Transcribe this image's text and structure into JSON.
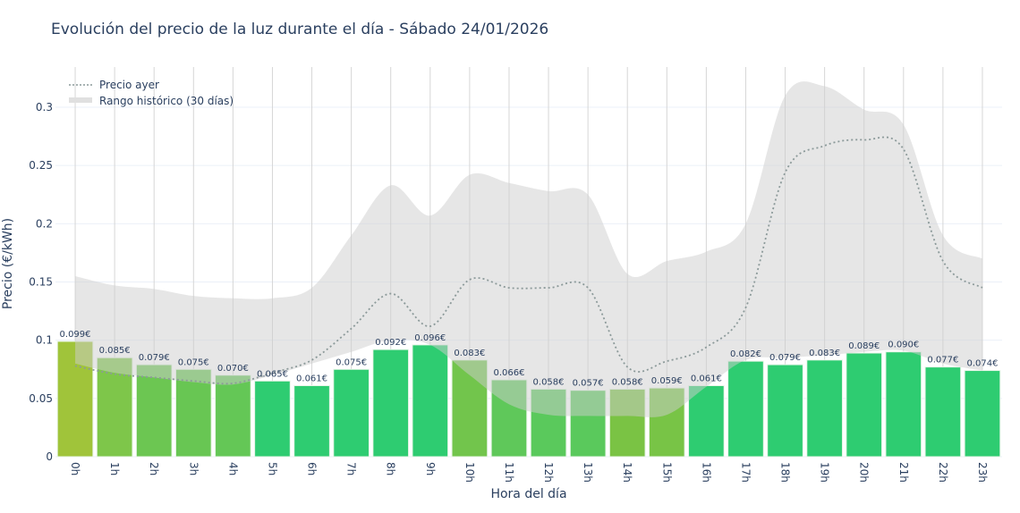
{
  "chart_data": {
    "type": "bar",
    "title": "Evolución del precio de la luz durante el día - Sábado 24/01/2026",
    "xlabel": "Hora del día",
    "ylabel": "Precio (€/kWh)",
    "ylim": [
      0,
      0.33
    ],
    "yticks": [
      0,
      0.05,
      0.1,
      0.15,
      0.2,
      0.25,
      0.3
    ],
    "ytick_labels": [
      "0",
      "0.05",
      "0.1",
      "0.15",
      "0.2",
      "0.25",
      "0.3"
    ],
    "grid": true,
    "legend_position": "top-left",
    "categories": [
      "0h",
      "1h",
      "2h",
      "3h",
      "4h",
      "5h",
      "6h",
      "7h",
      "8h",
      "9h",
      "10h",
      "11h",
      "12h",
      "13h",
      "14h",
      "15h",
      "16h",
      "17h",
      "18h",
      "19h",
      "20h",
      "21h",
      "22h",
      "23h"
    ],
    "values": [
      0.099,
      0.085,
      0.079,
      0.075,
      0.07,
      0.065,
      0.061,
      0.075,
      0.092,
      0.096,
      0.083,
      0.066,
      0.058,
      0.057,
      0.058,
      0.059,
      0.061,
      0.082,
      0.079,
      0.083,
      0.089,
      0.09,
      0.077,
      0.074
    ],
    "value_labels": [
      "0.099€",
      "0.085€",
      "0.079€",
      "0.075€",
      "0.070€",
      "0.065€",
      "0.061€",
      "0.075€",
      "0.092€",
      "0.096€",
      "0.083€",
      "0.066€",
      "0.058€",
      "0.057€",
      "0.058€",
      "0.059€",
      "0.061€",
      "0.082€",
      "0.079€",
      "0.083€",
      "0.089€",
      "0.090€",
      "0.077€",
      "0.074€"
    ],
    "bar_colors": [
      "#a0c43a",
      "#7ec64a",
      "#6cc652",
      "#68c653",
      "#64c756",
      "#2ecc71",
      "#2ecc71",
      "#2ecc71",
      "#2ecc71",
      "#2ecc71",
      "#72c54c",
      "#5fc85a",
      "#5ac95c",
      "#5ac95c",
      "#7ac344",
      "#78c446",
      "#2ecc71",
      "#2ecc71",
      "#2ecc71",
      "#2ecc71",
      "#2ecc71",
      "#2ecc71",
      "#2ecc71",
      "#2ecc71"
    ],
    "series": [
      {
        "name": "Precio ayer",
        "style": "dotted-line",
        "color": "#8c9a9a",
        "values": [
          0.078,
          0.071,
          0.068,
          0.065,
          0.063,
          0.072,
          0.083,
          0.11,
          0.14,
          0.112,
          0.152,
          0.145,
          0.145,
          0.145,
          0.077,
          0.082,
          0.094,
          0.128,
          0.244,
          0.267,
          0.272,
          0.264,
          0.168,
          0.145
        ]
      },
      {
        "name": "Rango histórico (30 días)",
        "style": "band",
        "color": "#d3d3d3",
        "upper": [
          0.155,
          0.147,
          0.144,
          0.138,
          0.136,
          0.136,
          0.145,
          0.19,
          0.233,
          0.207,
          0.242,
          0.235,
          0.228,
          0.225,
          0.157,
          0.168,
          0.176,
          0.2,
          0.31,
          0.318,
          0.298,
          0.285,
          0.19,
          0.17
        ],
        "lower": [
          0.08,
          0.072,
          0.068,
          0.064,
          0.062,
          0.07,
          0.08,
          0.09,
          0.1,
          0.096,
          0.07,
          0.045,
          0.036,
          0.035,
          0.035,
          0.036,
          0.06,
          0.083,
          0.085,
          0.087,
          0.09,
          0.091,
          0.08,
          0.074
        ]
      }
    ]
  }
}
